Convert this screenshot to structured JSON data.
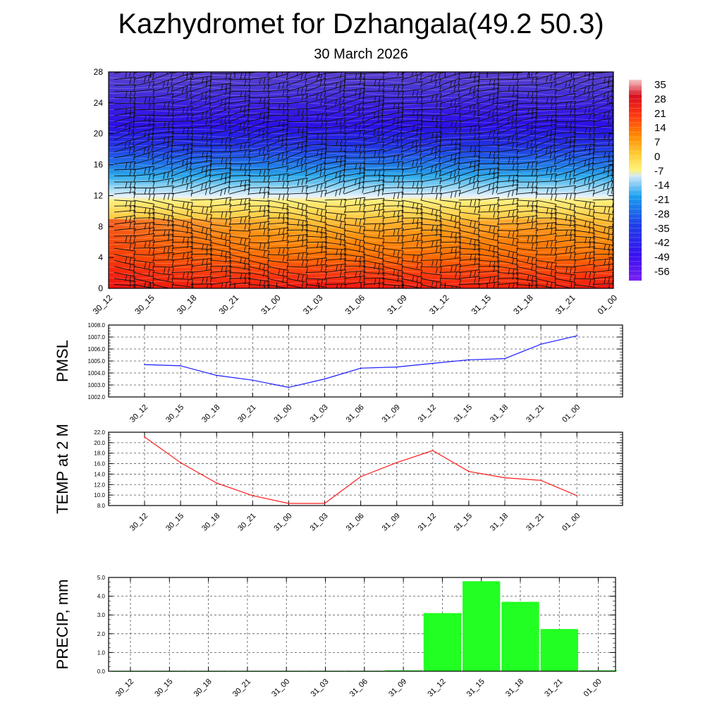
{
  "title": "Kazhydromet for Dzhangala(49.2 50.3)",
  "subtitle": "30 March 2026",
  "chart_data": [
    {
      "type": "heatmap",
      "xlabel": "",
      "ylabel": "",
      "x_ticks": [
        "30_12",
        "30_15",
        "30_18",
        "30_21",
        "31_00",
        "31_03",
        "31_06",
        "31_09",
        "31_12",
        "31_15",
        "31_18",
        "31_21",
        "01_00"
      ],
      "y_ticks": [
        0,
        4,
        8,
        12,
        16,
        20,
        24,
        28
      ],
      "ylim": [
        0,
        28
      ],
      "colorbar_labels": [
        "35",
        "28",
        "21",
        "14",
        "7",
        "0",
        "-7",
        "-14",
        "-21",
        "-28",
        "-35",
        "-42",
        "-49",
        "-56"
      ],
      "colorbar_range": [
        -63,
        42
      ],
      "overlay": "wind barbs",
      "colors": {
        "cold": "#3a1fe0",
        "cyan": "#29a6ea",
        "yellow": "#ffee66",
        "orange": "#ff8a00",
        "red": "#ee1010"
      }
    },
    {
      "type": "line",
      "ylabel": "PMSL",
      "categories": [
        "30_12",
        "30_15",
        "30_18",
        "30_21",
        "31_00",
        "31_03",
        "31_06",
        "31_09",
        "31_12",
        "31_15",
        "31_18",
        "31_21",
        "01_00"
      ],
      "values": [
        1004.7,
        1004.6,
        1003.8,
        1003.4,
        1002.8,
        1003.5,
        1004.4,
        1004.5,
        1004.8,
        1005.1,
        1005.2,
        1006.4,
        1007.1
      ],
      "yticks": [
        "1002.0",
        "1003.0",
        "1004.0",
        "1005.0",
        "1006.0",
        "1007.0",
        "1008.0"
      ],
      "ylim": [
        1002,
        1008
      ],
      "grid": true,
      "color": "#1a1aff"
    },
    {
      "type": "line",
      "ylabel": "TEMP at 2 M",
      "categories": [
        "30_12",
        "30_15",
        "30_18",
        "30_21",
        "31_00",
        "31_03",
        "31_06",
        "31_09",
        "31_12",
        "31_15",
        "31_18",
        "31_21",
        "01_00"
      ],
      "values": [
        21.1,
        16.2,
        12.3,
        9.9,
        8.4,
        8.4,
        13.5,
        16.2,
        18.5,
        14.5,
        13.3,
        12.8,
        9.9
      ],
      "yticks": [
        "8.0",
        "10.0",
        "12.0",
        "14.0",
        "16.0",
        "18.0",
        "20.0",
        "22.0"
      ],
      "ylim": [
        8,
        22
      ],
      "grid": true,
      "color": "#ff1a1a"
    },
    {
      "type": "bar",
      "ylabel": "PRECIP, mm",
      "categories": [
        "30_12",
        "30_15",
        "30_18",
        "30_21",
        "31_00",
        "31_03",
        "31_06",
        "31_09",
        "31_12",
        "31_15",
        "31_18",
        "31_21",
        "01_00"
      ],
      "values": [
        0,
        0,
        0,
        0,
        0,
        0,
        0,
        0.05,
        3.1,
        4.8,
        3.7,
        2.25,
        0.05
      ],
      "yticks": [
        "0.0",
        "1.0",
        "2.0",
        "3.0",
        "4.0",
        "5.0"
      ],
      "ylim": [
        0,
        5
      ],
      "grid": true,
      "color": "#22ff22"
    }
  ]
}
